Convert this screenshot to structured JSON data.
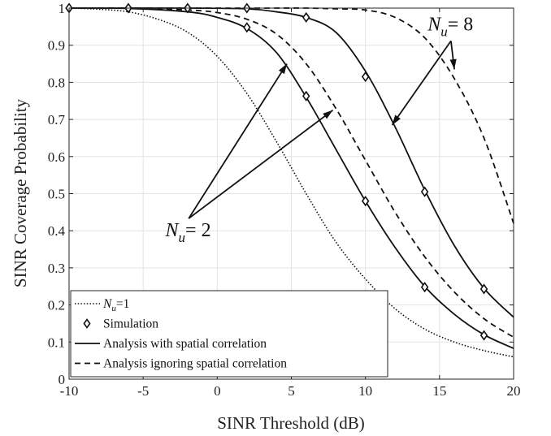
{
  "chart_data": {
    "type": "line",
    "title": "",
    "xlabel": "SINR Threshold (dB)",
    "ylabel": "SINR Coverage Probability",
    "xlim": [
      -10,
      20
    ],
    "ylim": [
      0,
      1
    ],
    "xticks": [
      -10,
      -5,
      0,
      5,
      10,
      15,
      20
    ],
    "yticks": [
      0,
      0.1,
      0.2,
      0.3,
      0.4,
      0.5,
      0.6,
      0.7,
      0.8,
      0.9,
      1
    ],
    "grid": true,
    "legend_position": "bottom-left",
    "legend": [
      {
        "style": "dotted",
        "label_prefix": "N",
        "label_sub": "u",
        "label_suffix": "=1"
      },
      {
        "style": "marker",
        "label_prefix": "Simulation",
        "label_sub": "",
        "label_suffix": ""
      },
      {
        "style": "solid",
        "label_prefix": "Analysis with spatial correlation",
        "label_sub": "",
        "label_suffix": ""
      },
      {
        "style": "dashed",
        "label_prefix": "Analysis ignoring spatial correlation",
        "label_sub": "",
        "label_suffix": ""
      }
    ],
    "series": [
      {
        "group": "Nu=1",
        "style": "dotted",
        "points": [
          [
            -10,
            1.0
          ],
          [
            -8,
            0.997
          ],
          [
            -6,
            0.99
          ],
          [
            -4,
            0.97
          ],
          [
            -2,
            0.935
          ],
          [
            0,
            0.87
          ],
          [
            2,
            0.77
          ],
          [
            4,
            0.64
          ],
          [
            6,
            0.5
          ],
          [
            8,
            0.37
          ],
          [
            10,
            0.27
          ],
          [
            12,
            0.19
          ],
          [
            14,
            0.135
          ],
          [
            16,
            0.1
          ],
          [
            18,
            0.077
          ],
          [
            20,
            0.06
          ]
        ]
      },
      {
        "group": "Nu=2",
        "style": "solid",
        "points": [
          [
            -10,
            1.0
          ],
          [
            -6,
            0.999
          ],
          [
            -2,
            0.99
          ],
          [
            0,
            0.975
          ],
          [
            2,
            0.945
          ],
          [
            4,
            0.88
          ],
          [
            6,
            0.76
          ],
          [
            8,
            0.62
          ],
          [
            10,
            0.48
          ],
          [
            12,
            0.355
          ],
          [
            14,
            0.25
          ],
          [
            16,
            0.175
          ],
          [
            18,
            0.12
          ],
          [
            20,
            0.083
          ]
        ]
      },
      {
        "group": "Nu=2",
        "style": "dashed",
        "points": [
          [
            -10,
            1.0
          ],
          [
            -6,
            1.0
          ],
          [
            -2,
            0.995
          ],
          [
            0,
            0.988
          ],
          [
            2,
            0.97
          ],
          [
            4,
            0.93
          ],
          [
            6,
            0.85
          ],
          [
            8,
            0.73
          ],
          [
            10,
            0.59
          ],
          [
            12,
            0.45
          ],
          [
            14,
            0.33
          ],
          [
            16,
            0.235
          ],
          [
            18,
            0.163
          ],
          [
            20,
            0.113
          ]
        ]
      },
      {
        "group": "Nu=8",
        "style": "solid",
        "points": [
          [
            -10,
            1.0
          ],
          [
            -2,
            1.0
          ],
          [
            2,
            0.998
          ],
          [
            4,
            0.99
          ],
          [
            6,
            0.975
          ],
          [
            8,
            0.935
          ],
          [
            10,
            0.83
          ],
          [
            12,
            0.68
          ],
          [
            14,
            0.51
          ],
          [
            16,
            0.36
          ],
          [
            18,
            0.245
          ],
          [
            20,
            0.167
          ]
        ]
      },
      {
        "group": "Nu=8",
        "style": "dashed",
        "points": [
          [
            -10,
            1.0
          ],
          [
            2,
            1.0
          ],
          [
            6,
            1.0
          ],
          [
            8,
            0.998
          ],
          [
            10,
            0.995
          ],
          [
            12,
            0.975
          ],
          [
            14,
            0.92
          ],
          [
            16,
            0.81
          ],
          [
            18,
            0.65
          ],
          [
            20,
            0.42
          ]
        ]
      }
    ],
    "simulation_markers": [
      [
        -10,
        1.0
      ],
      [
        -6,
        1.0
      ],
      [
        -2,
        1.0
      ],
      [
        2,
        1.0
      ],
      [
        6,
        0.975
      ],
      [
        10,
        0.815
      ],
      [
        14,
        0.505
      ],
      [
        18,
        0.243
      ],
      [
        2,
        0.948
      ],
      [
        6,
        0.763
      ],
      [
        10,
        0.48
      ],
      [
        14,
        0.248
      ],
      [
        18,
        0.118
      ]
    ],
    "annotations": [
      {
        "prefix": "N",
        "sub": "u",
        "suffix": "= 2",
        "label_at": [
          -3.5,
          0.385
        ],
        "arrows_to": [
          [
            4.7,
            0.85
          ],
          [
            7.8,
            0.725
          ]
        ]
      },
      {
        "prefix": "N",
        "sub": "u",
        "suffix": "= 8",
        "label_at": [
          14.2,
          0.94
        ],
        "arrows_to": [
          [
            11.8,
            0.685
          ],
          [
            16.0,
            0.835
          ]
        ]
      }
    ]
  }
}
